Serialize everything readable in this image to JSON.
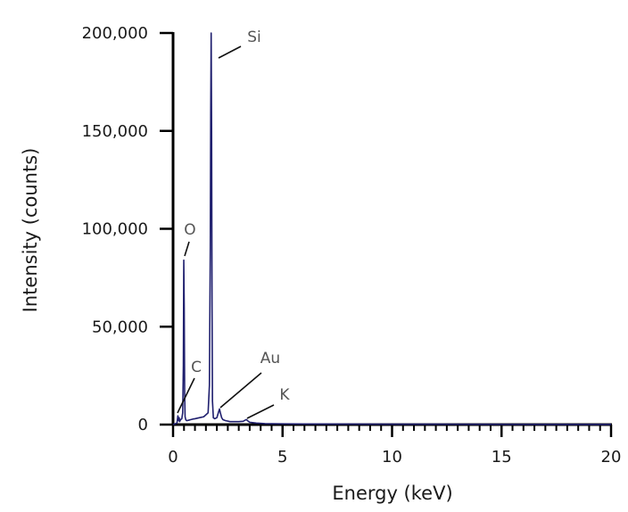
{
  "chart_data": {
    "type": "line",
    "title": "",
    "xlabel": "Energy (keV)",
    "ylabel": "Intensity (counts)",
    "xlim": [
      0,
      20
    ],
    "ylim": [
      0,
      200000
    ],
    "x_ticks": [
      0,
      5,
      10,
      15,
      20
    ],
    "x_tick_labels": [
      "0",
      "5",
      "10",
      "15",
      "20"
    ],
    "x_minor_step": 0.5,
    "y_ticks": [
      0,
      50000,
      100000,
      150000,
      200000
    ],
    "y_tick_labels": [
      "0",
      "50,000",
      "100,000",
      "150,000",
      "200,000"
    ],
    "grid": false,
    "legend": "none",
    "line_color": "#1f1f6e",
    "series": [
      {
        "x": [
          0,
          0.18,
          0.22,
          0.26,
          0.28,
          0.3,
          0.34,
          0.4,
          0.44,
          0.47,
          0.49,
          0.51,
          0.53,
          0.55,
          0.58,
          0.62,
          0.7,
          0.8,
          0.9,
          1.0,
          1.2,
          1.4,
          1.6,
          1.66,
          1.7,
          1.72,
          1.74,
          1.76,
          1.78,
          1.8,
          1.84,
          1.9,
          2.0,
          2.08,
          2.12,
          2.16,
          2.22,
          2.28,
          2.4,
          2.6,
          2.8,
          3.0,
          3.2,
          3.3,
          3.35,
          3.4,
          3.5,
          3.8,
          4.2,
          5.0,
          6.0,
          8.0,
          10.0,
          12.0,
          14.0,
          16.0,
          18.0,
          20.0
        ],
        "y": [
          0,
          800,
          4500,
          2000,
          3500,
          1500,
          2500,
          3000,
          6000,
          30000,
          84000,
          60000,
          15000,
          4000,
          2500,
          2000,
          2200,
          2500,
          2800,
          3000,
          3500,
          4000,
          6000,
          20000,
          90000,
          160000,
          200000,
          150000,
          60000,
          12000,
          3500,
          3000,
          3500,
          6500,
          8000,
          6000,
          3500,
          2500,
          2000,
          1500,
          1500,
          1500,
          1700,
          2300,
          2600,
          2000,
          1200,
          800,
          500,
          400,
          300,
          250,
          200,
          180,
          150,
          120,
          100,
          80
        ]
      }
    ],
    "annotations": [
      {
        "text": "Si",
        "x": 1.74,
        "y": 200000
      },
      {
        "text": "O",
        "x": 0.53,
        "y": 84000
      },
      {
        "text": "C",
        "x": 0.28,
        "y": 4500
      },
      {
        "text": "Au",
        "x": 2.12,
        "y": 8000
      },
      {
        "text": "K",
        "x": 3.35,
        "y": 2600
      }
    ]
  }
}
